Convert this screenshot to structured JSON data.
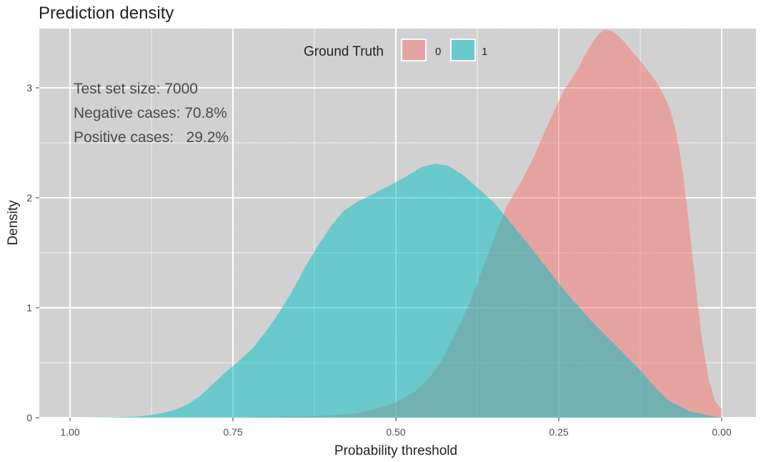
{
  "chart_data": {
    "type": "area",
    "title": "Prediction density",
    "xlabel": "Probability threshold",
    "ylabel": "Density",
    "x_reversed": true,
    "xlim": [
      1.0,
      0.0
    ],
    "ylim": [
      0,
      3.5
    ],
    "x_ticks": [
      1.0,
      0.75,
      0.5,
      0.25,
      0.0
    ],
    "x_tick_labels": [
      "1.00",
      "0.75",
      "0.50",
      "0.25",
      "0.00"
    ],
    "y_ticks": [
      0,
      1,
      2,
      3
    ],
    "y_tick_labels": [
      "0",
      "1",
      "2",
      "3"
    ],
    "grid": true,
    "legend": {
      "title": "Ground Truth",
      "position": "top",
      "entries": [
        {
          "label": "0",
          "color": "#f8766d"
        },
        {
          "label": "1",
          "color": "#00bfc4"
        }
      ]
    },
    "annotations": [
      "Test set size: 7000",
      "Negative cases: 70.8%",
      "Positive cases:   29.2%"
    ],
    "series": [
      {
        "name": "0",
        "color": "#f8766d",
        "x": [
          0.0,
          0.01,
          0.02,
          0.03,
          0.04,
          0.05,
          0.06,
          0.07,
          0.08,
          0.09,
          0.1,
          0.11,
          0.12,
          0.13,
          0.14,
          0.15,
          0.16,
          0.17,
          0.18,
          0.19,
          0.2,
          0.21,
          0.22,
          0.23,
          0.24,
          0.25,
          0.27,
          0.29,
          0.31,
          0.33,
          0.35,
          0.37,
          0.39,
          0.41,
          0.43,
          0.45,
          0.47,
          0.5,
          0.53,
          0.56,
          0.6,
          0.65,
          0.7,
          0.75,
          0.8
        ],
        "y": [
          0.08,
          0.15,
          0.35,
          0.7,
          1.2,
          1.75,
          2.25,
          2.6,
          2.82,
          2.95,
          3.05,
          3.13,
          3.21,
          3.28,
          3.35,
          3.42,
          3.48,
          3.52,
          3.53,
          3.48,
          3.4,
          3.3,
          3.18,
          3.08,
          3.0,
          2.88,
          2.62,
          2.35,
          2.12,
          1.92,
          1.62,
          1.3,
          1.0,
          0.75,
          0.52,
          0.35,
          0.24,
          0.14,
          0.08,
          0.04,
          0.02,
          0.01,
          0.005,
          0.002,
          0.0
        ]
      },
      {
        "name": "1",
        "color": "#00bfc4",
        "x": [
          0.0,
          0.02,
          0.05,
          0.08,
          0.1,
          0.12,
          0.15,
          0.18,
          0.2,
          0.23,
          0.25,
          0.28,
          0.3,
          0.33,
          0.35,
          0.38,
          0.4,
          0.42,
          0.44,
          0.46,
          0.48,
          0.5,
          0.52,
          0.54,
          0.56,
          0.58,
          0.6,
          0.62,
          0.64,
          0.66,
          0.68,
          0.7,
          0.72,
          0.74,
          0.76,
          0.78,
          0.8,
          0.82,
          0.84,
          0.86,
          0.88,
          0.9,
          0.93,
          0.96,
          0.98
        ],
        "y": [
          0.0,
          0.02,
          0.06,
          0.15,
          0.26,
          0.4,
          0.58,
          0.76,
          0.88,
          1.08,
          1.22,
          1.45,
          1.6,
          1.82,
          1.96,
          2.12,
          2.22,
          2.29,
          2.31,
          2.28,
          2.21,
          2.14,
          2.08,
          2.02,
          1.96,
          1.88,
          1.74,
          1.56,
          1.36,
          1.14,
          0.95,
          0.78,
          0.63,
          0.52,
          0.42,
          0.31,
          0.2,
          0.12,
          0.07,
          0.04,
          0.02,
          0.01,
          0.005,
          0.002,
          0.0
        ]
      }
    ]
  }
}
